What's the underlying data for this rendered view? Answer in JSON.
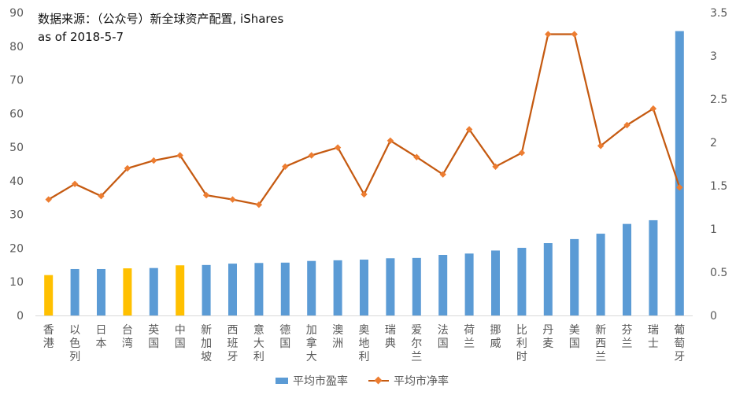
{
  "annotation": {
    "line1": "数据来源：（公众号）新全球资产配置, iShares",
    "line2": "as of 2018-5-7"
  },
  "legend": {
    "bar_label": "平均市盈率",
    "line_label": "平均市净率"
  },
  "chart_data": {
    "type": "bar",
    "categories": [
      "香港",
      "以色列",
      "日本",
      "台湾",
      "英国",
      "中国",
      "新加坡",
      "西班牙",
      "意大利",
      "德国",
      "加拿大",
      "澳洲",
      "奥地利",
      "瑞典",
      "爱尔兰",
      "法国",
      "荷兰",
      "挪威",
      "比利时",
      "丹麦",
      "美国",
      "新西兰",
      "芬兰",
      "瑞士",
      "葡萄牙"
    ],
    "series": [
      {
        "name": "平均市盈率",
        "type": "bar",
        "axis": "left",
        "values": [
          12,
          13.8,
          13.8,
          14,
          14.1,
          14.9,
          15,
          15.4,
          15.6,
          15.7,
          16.2,
          16.4,
          16.6,
          17,
          17.1,
          18,
          18.4,
          19.3,
          20.1,
          21.5,
          22.7,
          24.3,
          27.2,
          28.3,
          84.5
        ],
        "highlight_indices": [
          0,
          3,
          5
        ],
        "color": "#5b9bd5",
        "highlight_color": "#ffc000"
      },
      {
        "name": "平均市净率",
        "type": "line",
        "axis": "right",
        "values": [
          1.34,
          1.52,
          1.38,
          1.7,
          1.79,
          1.85,
          1.39,
          1.34,
          1.28,
          1.72,
          1.85,
          1.94,
          1.4,
          2.02,
          1.83,
          1.63,
          2.15,
          1.72,
          1.88,
          3.25,
          3.25,
          1.96,
          2.2,
          2.39,
          1.48
        ],
        "color": "#c55a11",
        "marker_color": "#ed7d31"
      }
    ],
    "y_left": {
      "range": [
        0,
        90
      ],
      "ticks": [
        0,
        10,
        20,
        30,
        40,
        50,
        60,
        70,
        80,
        90
      ]
    },
    "y_right": {
      "range": [
        0,
        3.5
      ],
      "ticks": [
        "0",
        "0.5",
        "1",
        "1.5",
        "2",
        "2.5",
        "3",
        "3.5"
      ]
    },
    "grid": false,
    "legend_position": "bottom"
  }
}
